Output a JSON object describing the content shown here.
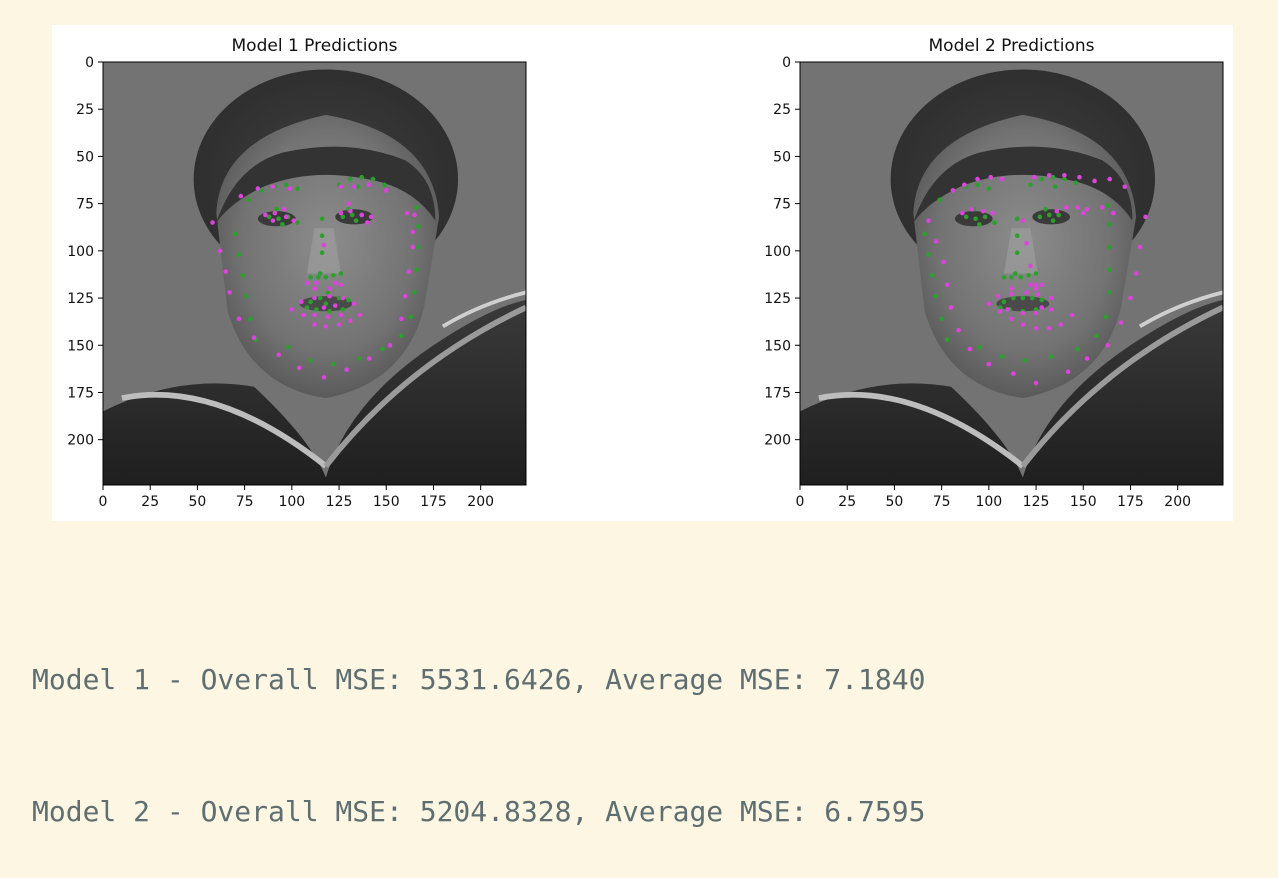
{
  "colors": {
    "background": "#fcf6e3",
    "console_text": "#5f6e70",
    "series_green": "#2ca02c",
    "series_magenta": "#dd44dd"
  },
  "console_output": [
    "Model 1 - Overall MSE: 5531.6426, Average MSE: 7.1840",
    "Model 2 - Overall MSE: 5204.8328, Average MSE: 6.7595"
  ],
  "chart_data": [
    {
      "type": "scatter",
      "title": "Model 1 Predictions",
      "image_background": "grayscale face photo",
      "xlim": [
        0,
        224
      ],
      "ylim": [
        224,
        0
      ],
      "xticks": [
        0,
        25,
        50,
        75,
        100,
        125,
        150,
        175,
        200
      ],
      "yticks": [
        0,
        25,
        50,
        75,
        100,
        125,
        150,
        175,
        200
      ],
      "grid": false,
      "series": [
        {
          "color": "#2ca02c",
          "points": [
            [
              70,
              91
            ],
            [
              72,
              102
            ],
            [
              74,
              113
            ],
            [
              76,
              124
            ],
            [
              78,
              136
            ],
            [
              81,
              147
            ],
            [
              98,
              151
            ],
            [
              110,
              158
            ],
            [
              122,
              160
            ],
            [
              136,
              157
            ],
            [
              148,
              152
            ],
            [
              158,
              145
            ],
            [
              163,
              135
            ],
            [
              165,
              122
            ],
            [
              166,
              110
            ],
            [
              167,
              98
            ],
            [
              167,
              87
            ],
            [
              166,
              77
            ],
            [
              77,
              73
            ],
            [
              84,
              68
            ],
            [
              91,
              66
            ],
            [
              97,
              65
            ],
            [
              103,
              67
            ],
            [
              125,
              65
            ],
            [
              131,
              62
            ],
            [
              137,
              61
            ],
            [
              143,
              62
            ],
            [
              149,
              65
            ],
            [
              116,
              83
            ],
            [
              116,
              92
            ],
            [
              116,
              101
            ],
            [
              115,
              112
            ],
            [
              110,
              114
            ],
            [
              114,
              114
            ],
            [
              118,
              114
            ],
            [
              122,
              113
            ],
            [
              126,
              112
            ],
            [
              110,
              127
            ],
            [
              115,
              125
            ],
            [
              120,
              124
            ],
            [
              125,
              125
            ],
            [
              130,
              126
            ],
            [
              127,
              131
            ],
            [
              120,
              132
            ],
            [
              113,
              131
            ],
            [
              108,
              130
            ],
            [
              88,
              82
            ],
            [
              93,
              83
            ],
            [
              98,
              82
            ],
            [
              127,
              82
            ],
            [
              132,
              81
            ],
            [
              137,
              81
            ],
            [
              92,
              78
            ],
            [
              95,
              86
            ],
            [
              130,
              78
            ],
            [
              134,
              84
            ],
            [
              103,
              85
            ],
            [
              135,
              66
            ],
            [
              119,
              122
            ],
            [
              118,
              128
            ]
          ]
        },
        {
          "color": "#dd44dd",
          "points": [
            [
              58,
              85
            ],
            [
              62,
              100
            ],
            [
              65,
              111
            ],
            [
              67,
              122
            ],
            [
              72,
              136
            ],
            [
              80,
              146
            ],
            [
              93,
              155
            ],
            [
              104,
              162
            ],
            [
              117,
              167
            ],
            [
              129,
              163
            ],
            [
              141,
              157
            ],
            [
              152,
              150
            ],
            [
              158,
              136
            ],
            [
              160,
              124
            ],
            [
              162,
              111
            ],
            [
              164,
              98
            ],
            [
              164,
              90
            ],
            [
              165,
              81
            ],
            [
              73,
              71
            ],
            [
              82,
              67
            ],
            [
              90,
              66
            ],
            [
              99,
              67
            ],
            [
              126,
              66
            ],
            [
              133,
              66
            ],
            [
              141,
              65
            ],
            [
              150,
              68
            ],
            [
              161,
              80
            ],
            [
              86,
              81
            ],
            [
              91,
              80
            ],
            [
              97,
              82
            ],
            [
              101,
              84
            ],
            [
              126,
              80
            ],
            [
              131,
              79
            ],
            [
              137,
              81
            ],
            [
              142,
              82
            ],
            [
              117,
              97
            ],
            [
              108,
              117
            ],
            [
              112,
              120
            ],
            [
              120,
              120
            ],
            [
              126,
              118
            ],
            [
              100,
              131
            ],
            [
              106,
              134
            ],
            [
              112,
              139
            ],
            [
              118,
              140
            ],
            [
              125,
              139
            ],
            [
              131,
              137
            ],
            [
              136,
              134
            ],
            [
              105,
              127
            ],
            [
              112,
              125
            ],
            [
              120,
              124
            ],
            [
              127,
              125
            ],
            [
              133,
              128
            ],
            [
              112,
              134
            ],
            [
              119,
              135
            ],
            [
              126,
              134
            ],
            [
              90,
              84
            ],
            [
              96,
              78
            ],
            [
              130,
              75
            ],
            [
              140,
              85
            ],
            [
              113,
              117
            ],
            [
              123,
              117
            ],
            [
              117,
              130
            ],
            [
              123,
              129
            ]
          ]
        }
      ]
    },
    {
      "type": "scatter",
      "title": "Model 2 Predictions",
      "image_background": "grayscale face photo",
      "xlim": [
        0,
        224
      ],
      "ylim": [
        224,
        0
      ],
      "xticks": [
        0,
        25,
        50,
        75,
        100,
        125,
        150,
        175,
        200
      ],
      "yticks": [
        0,
        25,
        50,
        75,
        100,
        125,
        150,
        175,
        200
      ],
      "grid": false,
      "series": [
        {
          "color": "#2ca02c",
          "points": [
            [
              66,
              91
            ],
            [
              68,
              102
            ],
            [
              70,
              113
            ],
            [
              72,
              124
            ],
            [
              75,
              136
            ],
            [
              78,
              147
            ],
            [
              95,
              151
            ],
            [
              107,
              156
            ],
            [
              119,
              158
            ],
            [
              133,
              156
            ],
            [
              147,
              152
            ],
            [
              157,
              145
            ],
            [
              162,
              135
            ],
            [
              164,
              122
            ],
            [
              164,
              110
            ],
            [
              164,
              98
            ],
            [
              164,
              86
            ],
            [
              163,
              76
            ],
            [
              74,
              73
            ],
            [
              81,
              68
            ],
            [
              88,
              66
            ],
            [
              94,
              65
            ],
            [
              100,
              67
            ],
            [
              122,
              65
            ],
            [
              128,
              62
            ],
            [
              134,
              61
            ],
            [
              140,
              62
            ],
            [
              146,
              64
            ],
            [
              115,
              83
            ],
            [
              115,
              92
            ],
            [
              115,
              101
            ],
            [
              114,
              112
            ],
            [
              108,
              114
            ],
            [
              112,
              114
            ],
            [
              117,
              114
            ],
            [
              121,
              113
            ],
            [
              125,
              112
            ],
            [
              108,
              127
            ],
            [
              113,
              125
            ],
            [
              118,
              125
            ],
            [
              123,
              125
            ],
            [
              128,
              126
            ],
            [
              125,
              131
            ],
            [
              118,
              132
            ],
            [
              111,
              131
            ],
            [
              106,
              130
            ],
            [
              88,
              82
            ],
            [
              93,
              83
            ],
            [
              98,
              82
            ],
            [
              127,
              82
            ],
            [
              132,
              81
            ],
            [
              137,
              81
            ],
            [
              92,
              78
            ],
            [
              95,
              86
            ],
            [
              130,
              78
            ],
            [
              134,
              84
            ],
            [
              103,
              85
            ],
            [
              135,
              66
            ]
          ]
        },
        {
          "color": "#dd44dd",
          "points": [
            [
              68,
              84
            ],
            [
              72,
              95
            ],
            [
              76,
              106
            ],
            [
              78,
              118
            ],
            [
              80,
              130
            ],
            [
              84,
              142
            ],
            [
              90,
              152
            ],
            [
              100,
              160
            ],
            [
              113,
              165
            ],
            [
              125,
              170
            ],
            [
              142,
              164
            ],
            [
              152,
              157
            ],
            [
              163,
              150
            ],
            [
              170,
              138
            ],
            [
              175,
              125
            ],
            [
              178,
              112
            ],
            [
              180,
              98
            ],
            [
              183,
              82
            ],
            [
              81,
              68
            ],
            [
              87,
              65
            ],
            [
              94,
              62
            ],
            [
              101,
              61
            ],
            [
              107,
              62
            ],
            [
              124,
              61
            ],
            [
              132,
              60
            ],
            [
              140,
              60
            ],
            [
              148,
              61
            ],
            [
              156,
              63
            ],
            [
              164,
              62
            ],
            [
              172,
              66
            ],
            [
              118,
              84
            ],
            [
              120,
              96
            ],
            [
              122,
              108
            ],
            [
              122,
              118
            ],
            [
              125,
              118
            ],
            [
              128,
              118
            ],
            [
              100,
              128
            ],
            [
              106,
              132
            ],
            [
              112,
              136
            ],
            [
              118,
              139
            ],
            [
              125,
              141
            ],
            [
              132,
              141
            ],
            [
              138,
              139
            ],
            [
              144,
              134
            ],
            [
              105,
              124
            ],
            [
              112,
              123
            ],
            [
              120,
              122
            ],
            [
              126,
              123
            ],
            [
              133,
              125
            ],
            [
              110,
              131
            ],
            [
              118,
              133
            ],
            [
              125,
              133
            ],
            [
              133,
              131
            ],
            [
              86,
              80
            ],
            [
              91,
              78
            ],
            [
              97,
              79
            ],
            [
              102,
              80
            ],
            [
              136,
              79
            ],
            [
              141,
              77
            ],
            [
              147,
              77
            ],
            [
              152,
              78
            ],
            [
              160,
              77
            ],
            [
              166,
              80
            ],
            [
              150,
              80
            ],
            [
              112,
              120
            ],
            [
              125,
              120
            ],
            [
              128,
              130
            ]
          ]
        }
      ]
    }
  ]
}
